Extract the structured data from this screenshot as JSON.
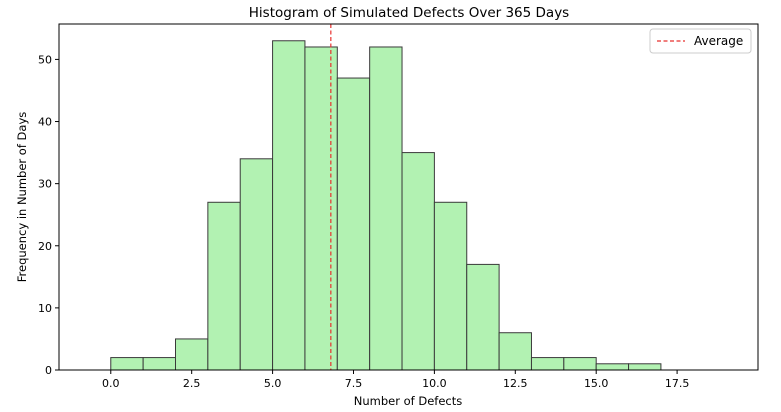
{
  "chart_data": {
    "type": "bar",
    "subtype": "histogram",
    "title": "Histogram of Simulated Defects Over 365 Days",
    "xlabel": "Number of Defects",
    "ylabel": "Frequency in Number of Days",
    "bins": [
      {
        "start": 0,
        "end": 1,
        "value": 2
      },
      {
        "start": 1,
        "end": 2,
        "value": 2
      },
      {
        "start": 2,
        "end": 3,
        "value": 5
      },
      {
        "start": 3,
        "end": 4,
        "value": 27
      },
      {
        "start": 4,
        "end": 5,
        "value": 34
      },
      {
        "start": 5,
        "end": 6,
        "value": 53
      },
      {
        "start": 6,
        "end": 7,
        "value": 52
      },
      {
        "start": 7,
        "end": 8,
        "value": 47
      },
      {
        "start": 8,
        "end": 9,
        "value": 52
      },
      {
        "start": 9,
        "end": 10,
        "value": 35
      },
      {
        "start": 10,
        "end": 11,
        "value": 27
      },
      {
        "start": 11,
        "end": 12,
        "value": 17
      },
      {
        "start": 12,
        "end": 13,
        "value": 6
      },
      {
        "start": 13,
        "end": 14,
        "value": 2
      },
      {
        "start": 14,
        "end": 15,
        "value": 2
      },
      {
        "start": 15,
        "end": 16,
        "value": 1
      },
      {
        "start": 16,
        "end": 17,
        "value": 1
      },
      {
        "start": 17,
        "end": 18,
        "value": 0
      },
      {
        "start": 18,
        "end": 19,
        "value": 0
      }
    ],
    "xlim": [
      -1.6,
      20.0
    ],
    "ylim": [
      0,
      55.7
    ],
    "xticks": [
      0.0,
      2.5,
      5.0,
      7.5,
      10.0,
      12.5,
      15.0,
      17.5
    ],
    "xtick_labels": [
      "0.0",
      "2.5",
      "5.0",
      "7.5",
      "10.0",
      "12.5",
      "15.0",
      "17.5"
    ],
    "yticks": [
      0,
      10,
      20,
      30,
      40,
      50
    ],
    "ytick_labels": [
      "0",
      "10",
      "20",
      "30",
      "40",
      "50"
    ],
    "average": 6.8,
    "average_label": "Average",
    "legend_position": "top-right",
    "grid": false,
    "colors": {
      "bar_fill": "#b2f2b2",
      "bar_edge": "#3a3a3a",
      "average_line": "#e8312f",
      "axis": "#000000"
    }
  }
}
